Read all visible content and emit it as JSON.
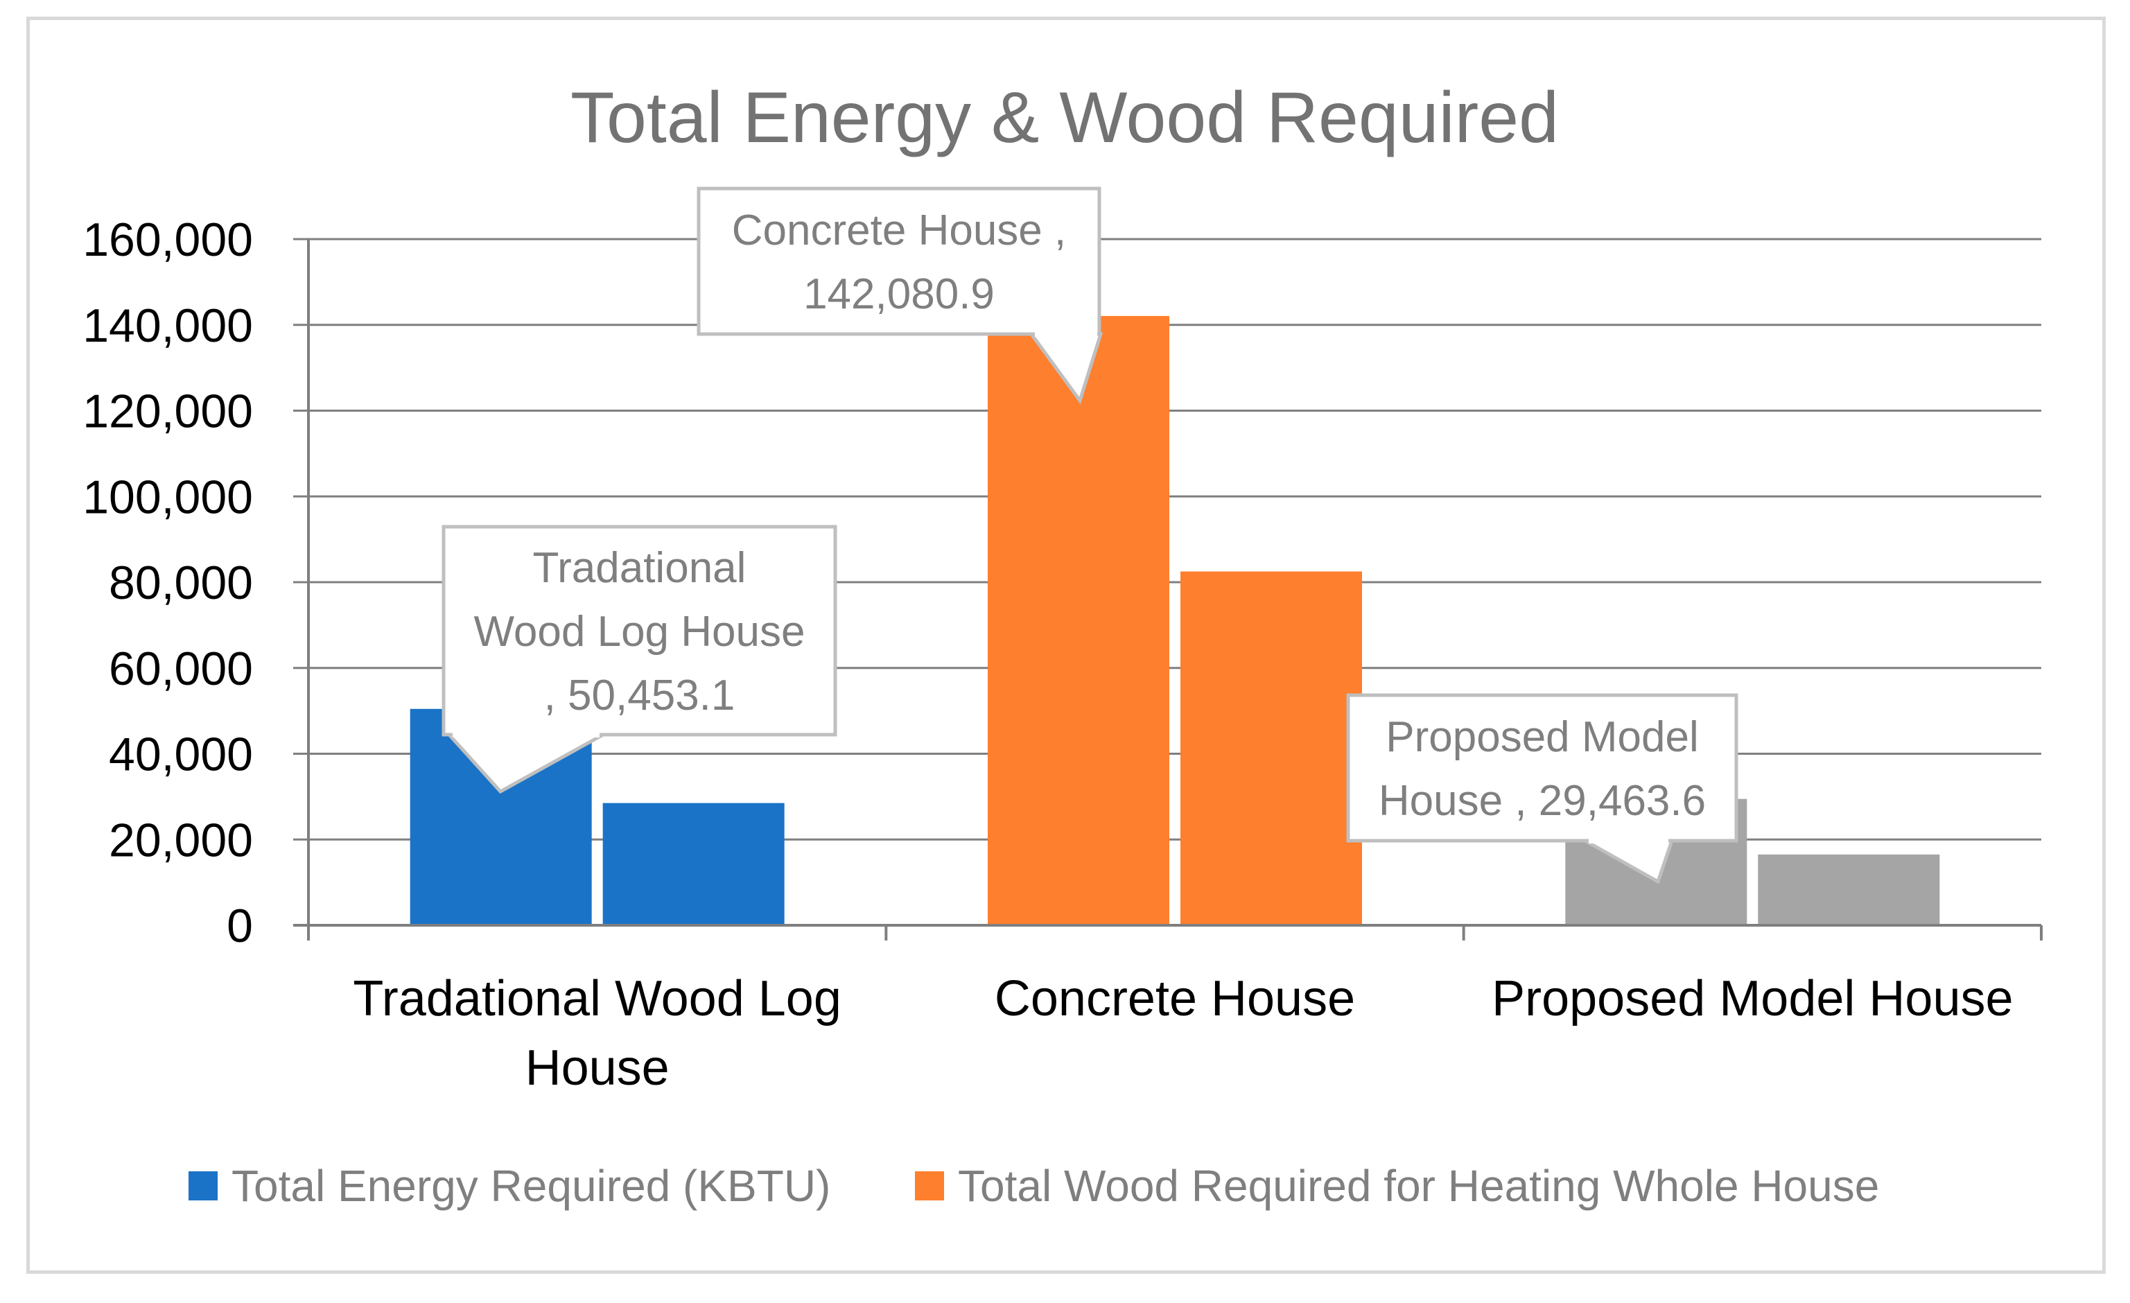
{
  "chart_data": {
    "type": "bar",
    "title": "Total Energy & Wood Required",
    "categories": [
      [
        "Tradational Wood Log",
        "House"
      ],
      [
        "Concrete House"
      ],
      [
        "Proposed Model House"
      ]
    ],
    "series": [
      {
        "name": "Total Energy Required (KBTU)",
        "color": "#1a73c7",
        "values": [
          50453.1,
          142080.9,
          29463.6
        ]
      },
      {
        "name": "Total Wood Required for Heating Whole House",
        "color": "#fe7f2d",
        "values": [
          28500,
          82500,
          16500
        ]
      }
    ],
    "category_color_override": [
      "#1a73c7",
      "#fe7f2d",
      "#a5a5a5"
    ],
    "ylim": [
      0,
      160000
    ],
    "yticks": [
      "0",
      "20,000",
      "40,000",
      "60,000",
      "80,000",
      "100,000",
      "120,000",
      "140,000",
      "160,000"
    ],
    "grid": true,
    "legend_position": "bottom",
    "annotations": [
      {
        "category_index": 0,
        "lines": [
          "Tradational",
          "Wood Log House",
          ", 50,453.1"
        ]
      },
      {
        "category_index": 1,
        "lines": [
          "Concrete House ,",
          "142,080.9"
        ]
      },
      {
        "category_index": 2,
        "lines": [
          "Proposed Model",
          "House , 29,463.6"
        ]
      }
    ]
  }
}
